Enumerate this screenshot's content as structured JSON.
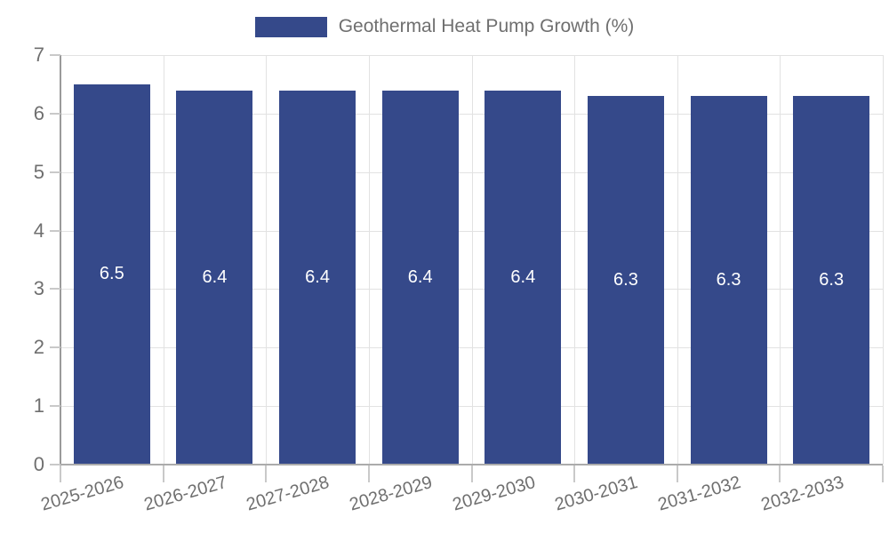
{
  "legend": {
    "swatch_color": "#35498a",
    "label": "Geothermal Heat Pump Growth (%)"
  },
  "chart_data": {
    "type": "bar",
    "title": "Geothermal Heat Pump Growth (%)",
    "legend_entries": [
      "Geothermal Heat Pump Growth (%)"
    ],
    "legend_position": "top-center",
    "categories": [
      "2025-2026",
      "2026-2027",
      "2027-2028",
      "2028-2029",
      "2029-2030",
      "2030-2031",
      "2031-2032",
      "2032-2033"
    ],
    "values": [
      6.5,
      6.4,
      6.4,
      6.4,
      6.4,
      6.3,
      6.3,
      6.3
    ],
    "value_labels": [
      "6.5",
      "6.4",
      "6.4",
      "6.4",
      "6.4",
      "6.3",
      "6.3",
      "6.3"
    ],
    "xlabel": "",
    "ylabel": "",
    "ylim": [
      0,
      7
    ],
    "yticks": [
      0,
      1,
      2,
      3,
      4,
      5,
      6,
      7
    ],
    "grid": true,
    "bar_color": "#35498a",
    "bar_label_color": "#ffffff",
    "axis_text_color": "#6f6f6f",
    "grid_color": "#e2e2e2"
  }
}
